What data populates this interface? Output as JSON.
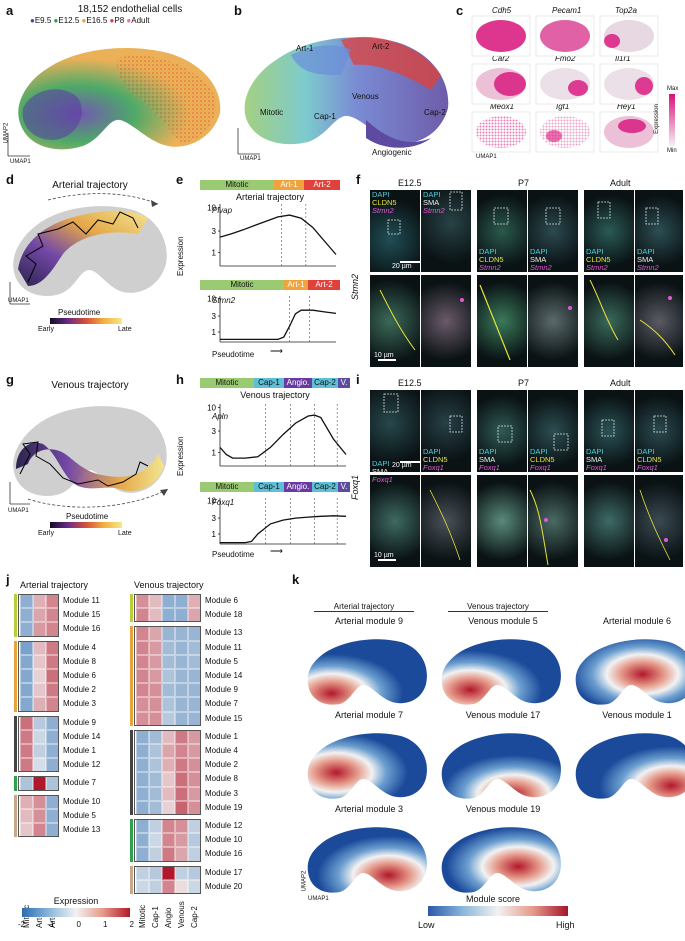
{
  "panels": {
    "a": "a",
    "b": "b",
    "c": "c",
    "d": "d",
    "e": "e",
    "f": "f",
    "g": "g",
    "h": "h",
    "i": "i",
    "j": "j",
    "k": "k"
  },
  "a": {
    "title": "18,152 endothelial cells",
    "legend": [
      {
        "label": "E9.5",
        "color": "#5a3aa3"
      },
      {
        "label": "E12.5",
        "color": "#2e9a4e"
      },
      {
        "label": "E16.5",
        "color": "#e8a33a"
      },
      {
        "label": "P8",
        "color": "#e0413a"
      },
      {
        "label": "Adult",
        "color": "#e56fb3"
      }
    ],
    "xaxis": "UMAP1",
    "yaxis": "UMAP2"
  },
  "b": {
    "clusters": [
      "Art-1",
      "Art-2",
      "Mitotic",
      "Cap-1",
      "Venous",
      "Cap-2",
      "Angiogenic"
    ],
    "cluster_colors": [
      "#6b7ecf",
      "#e0413a",
      "#9acb73",
      "#5ebfd6",
      "#7c5cb5",
      "#7d65b8",
      "#5e4aa0"
    ],
    "xaxis": "UMAP1",
    "yaxis": "UMAP2"
  },
  "c": {
    "genes": [
      "Cdh5",
      "Pecam1",
      "Top2a",
      "Car2",
      "Fmo2",
      "Il1r1",
      "Meox1",
      "Igf1",
      "Hey1"
    ],
    "scale_max": "Max",
    "scale_min": "Min",
    "scale_label": "Expression",
    "xaxis": "UMAP1",
    "yaxis": "UMAP2"
  },
  "d": {
    "title": "Arterial trajectory",
    "scale_label": "Pseudotime",
    "early": "Early",
    "late": "Late",
    "xaxis": "UMAP1",
    "yaxis": "UMAP2"
  },
  "e": {
    "stages": [
      "Mitotic",
      "Art-1",
      "Art-2"
    ],
    "title": "Arterial trajectory",
    "genes": [
      "Plvap",
      "Stmn2"
    ],
    "yticks": [
      "10",
      "3",
      "1"
    ],
    "ylabel": "Expression",
    "xlabel": "Pseudotime"
  },
  "f": {
    "timepoints": [
      "E12.5",
      "P7",
      "Adult"
    ],
    "gene": "Stmn2",
    "stain_a": [
      "DAPI",
      "CLDN5",
      "Stmn2"
    ],
    "stain_b": [
      "DAPI",
      "SMA",
      "Stmn2"
    ],
    "scale_top": "20 µm",
    "scale_bottom": "10 µm"
  },
  "g": {
    "title": "Venous trajectory",
    "scale_label": "Pseudotime",
    "early": "Early",
    "late": "Late",
    "xaxis": "UMAP1",
    "yaxis": "UMAP2"
  },
  "h": {
    "stages": [
      "Mitotic",
      "Cap-1",
      "Angio.",
      "Cap-2",
      "V."
    ],
    "title": "Venous trajectory",
    "genes": [
      "Apln",
      "Foxq1"
    ],
    "yticks": [
      "10",
      "3",
      "1"
    ],
    "ylabel": "Expression",
    "xlabel": "Pseudotime"
  },
  "i": {
    "timepoints": [
      "E12.5",
      "P7",
      "Adult"
    ],
    "gene": "Foxq1",
    "stain_a": [
      "DAPI",
      "SMA",
      "Foxq1"
    ],
    "stain_b": [
      "DAPI",
      "CLDN5",
      "Foxq1"
    ],
    "scale_top": "20 µm",
    "scale_bottom": "10 µm"
  },
  "j": {
    "arterial_title": "Arterial trajectory",
    "venous_title": "Venous trajectory",
    "arterial_cols": [
      "Mitotic",
      "Art-1",
      "Art-2"
    ],
    "venous_cols": [
      "Mitotic",
      "Cap-1",
      "Angio",
      "Venous",
      "Cap-2"
    ],
    "arterial_modules": [
      {
        "name": "Module 11",
        "vals": [
          -1.0,
          0.6,
          1.0
        ]
      },
      {
        "name": "Module 15",
        "vals": [
          -1.0,
          0.7,
          1.0
        ]
      },
      {
        "name": "Module 16",
        "vals": [
          -1.0,
          0.8,
          1.0
        ]
      },
      {
        "name": "Module 4",
        "vals": [
          -1.2,
          0.5,
          1.1
        ]
      },
      {
        "name": "Module 8",
        "vals": [
          -1.1,
          0.4,
          1.1
        ]
      },
      {
        "name": "Module 6",
        "vals": [
          -1.1,
          0.3,
          1.2
        ]
      },
      {
        "name": "Module 2",
        "vals": [
          -1.1,
          0.4,
          1.1
        ]
      },
      {
        "name": "Module 3",
        "vals": [
          -1.1,
          0.6,
          1.0
        ]
      },
      {
        "name": "Module 9",
        "vals": [
          1.2,
          -0.6,
          -1.0
        ]
      },
      {
        "name": "Module 14",
        "vals": [
          1.1,
          -0.4,
          -1.0
        ]
      },
      {
        "name": "Module 1",
        "vals": [
          1.1,
          -0.5,
          -1.0
        ]
      },
      {
        "name": "Module 12",
        "vals": [
          1.1,
          -0.3,
          -1.0
        ]
      },
      {
        "name": "Module 7",
        "vals": [
          -0.7,
          2.0,
          -0.7
        ]
      },
      {
        "name": "Module 10",
        "vals": [
          0.6,
          0.9,
          -1.0
        ]
      },
      {
        "name": "Module 5",
        "vals": [
          0.5,
          0.9,
          -1.0
        ]
      },
      {
        "name": "Module 13",
        "vals": [
          0.4,
          1.0,
          -1.0
        ]
      }
    ],
    "arterial_groups": [
      {
        "size": 3,
        "color": "#b9cc3a"
      },
      {
        "size": 5,
        "color": "#e8a33a"
      },
      {
        "size": 4,
        "color": "#444444"
      },
      {
        "size": 1,
        "color": "#2ea24a"
      },
      {
        "size": 3,
        "color": "#c8a888"
      }
    ],
    "venous_modules": [
      {
        "name": "Module 6",
        "vals": [
          0.9,
          0.5,
          -1.0,
          -1.0,
          0.6
        ]
      },
      {
        "name": "Module 18",
        "vals": [
          1.0,
          0.5,
          -1.0,
          -1.0,
          0.7
        ]
      },
      {
        "name": "Module 13",
        "vals": [
          1.0,
          0.7,
          -0.9,
          -0.9,
          -0.9
        ]
      },
      {
        "name": "Module 11",
        "vals": [
          1.0,
          0.8,
          -0.8,
          -0.9,
          -0.8
        ]
      },
      {
        "name": "Module 5",
        "vals": [
          1.0,
          0.8,
          -0.8,
          -0.9,
          -0.8
        ]
      },
      {
        "name": "Module 14",
        "vals": [
          1.0,
          0.8,
          -0.7,
          -0.9,
          -0.9
        ]
      },
      {
        "name": "Module 9",
        "vals": [
          1.0,
          0.9,
          -0.8,
          -0.9,
          -0.9
        ]
      },
      {
        "name": "Module 7",
        "vals": [
          0.9,
          0.9,
          -0.7,
          -0.9,
          -0.9
        ]
      },
      {
        "name": "Module 15",
        "vals": [
          0.9,
          0.9,
          -0.6,
          -0.9,
          -0.9
        ]
      },
      {
        "name": "Module 1",
        "vals": [
          -1.0,
          -0.8,
          0.5,
          1.1,
          0.8
        ]
      },
      {
        "name": "Module 4",
        "vals": [
          -1.0,
          -0.7,
          0.7,
          1.0,
          0.8
        ]
      },
      {
        "name": "Module 2",
        "vals": [
          -1.0,
          -0.7,
          0.6,
          1.1,
          0.9
        ]
      },
      {
        "name": "Module 8",
        "vals": [
          -1.0,
          -0.8,
          0.4,
          1.2,
          0.9
        ]
      },
      {
        "name": "Module 3",
        "vals": [
          -1.0,
          -0.8,
          0.5,
          1.2,
          0.8
        ]
      },
      {
        "name": "Module 19",
        "vals": [
          -1.0,
          -0.8,
          0.3,
          1.3,
          0.9
        ]
      },
      {
        "name": "Module 12",
        "vals": [
          -1.0,
          -0.5,
          1.0,
          0.9,
          -0.5
        ]
      },
      {
        "name": "Module 10",
        "vals": [
          -1.0,
          -0.4,
          1.0,
          0.8,
          -0.6
        ]
      },
      {
        "name": "Module 16",
        "vals": [
          -1.0,
          -0.5,
          1.1,
          0.7,
          -0.5
        ]
      },
      {
        "name": "Module 17",
        "vals": [
          -0.5,
          -0.6,
          2.0,
          -0.5,
          -0.6
        ]
      },
      {
        "name": "Module 20",
        "vals": [
          -0.4,
          -0.5,
          1.0,
          0.2,
          -0.4
        ]
      }
    ],
    "venous_groups": [
      {
        "size": 2,
        "color": "#b9cc3a"
      },
      {
        "size": 7,
        "color": "#e8a33a"
      },
      {
        "size": 6,
        "color": "#444444"
      },
      {
        "size": 3,
        "color": "#2ea24a"
      },
      {
        "size": 2,
        "color": "#c8a888"
      }
    ],
    "colorbar_label": "Expression",
    "colorbar_ticks": [
      "-2",
      "-1",
      "0",
      "1",
      "2"
    ]
  },
  "k": {
    "group_arterial": "Arterial trajectory",
    "group_venous": "Venous trajectory",
    "maps": [
      "Arterial module 9",
      "Venous module 5",
      "Arterial module 6",
      "Arterial module 7",
      "Venous module 17",
      "Venous module 1",
      "Arterial module 3",
      "Venous module 19"
    ],
    "colorbar_label": "Module score",
    "low": "Low",
    "high": "High",
    "xaxis": "UMAP1",
    "yaxis": "UMAP2"
  },
  "chart_data": [
    {
      "type": "line",
      "title": "Arterial trajectory",
      "gene": "Plvap",
      "xlabel": "Pseudotime",
      "ylabel": "Expression",
      "yscale": "log",
      "yticks": [
        1,
        3,
        10
      ],
      "x": [
        0,
        0.1,
        0.2,
        0.3,
        0.4,
        0.5,
        0.6,
        0.7,
        0.8,
        0.9,
        1.0
      ],
      "y": [
        2.2,
        2.6,
        3.2,
        4.0,
        5.0,
        6.2,
        6.8,
        5.8,
        3.6,
        1.8,
        0.9
      ]
    },
    {
      "type": "line",
      "title": "Arterial trajectory",
      "gene": "Stmn2",
      "xlabel": "Pseudotime",
      "ylabel": "Expression",
      "yscale": "log",
      "yticks": [
        1,
        3,
        10
      ],
      "x": [
        0,
        0.1,
        0.2,
        0.3,
        0.4,
        0.5,
        0.55,
        0.6,
        0.65,
        0.7,
        0.8,
        0.9,
        1.0
      ],
      "y": [
        0.6,
        0.6,
        0.6,
        0.6,
        0.6,
        0.6,
        0.7,
        1.5,
        3.5,
        4.5,
        4.5,
        4.0,
        3.6
      ]
    },
    {
      "type": "line",
      "title": "Venous trajectory",
      "gene": "Apln",
      "xlabel": "Pseudotime",
      "ylabel": "Expression",
      "yscale": "log",
      "yticks": [
        1,
        3,
        10
      ],
      "x": [
        0,
        0.05,
        0.1,
        0.2,
        0.3,
        0.4,
        0.5,
        0.6,
        0.7,
        0.75,
        0.8,
        0.9,
        1.0
      ],
      "y": [
        1.3,
        0.9,
        0.75,
        0.75,
        0.8,
        1.3,
        2.5,
        4.5,
        6.5,
        6.8,
        6.0,
        2.0,
        0.9
      ]
    },
    {
      "type": "line",
      "title": "Venous trajectory",
      "gene": "Foxq1",
      "xlabel": "Pseudotime",
      "ylabel": "Expression",
      "yscale": "log",
      "yticks": [
        1,
        3,
        10
      ],
      "x": [
        0,
        0.1,
        0.2,
        0.25,
        0.3,
        0.4,
        0.5,
        0.6,
        0.7,
        0.8,
        0.9,
        1.0
      ],
      "y": [
        0.55,
        0.55,
        0.55,
        0.6,
        1.0,
        2.0,
        2.6,
        3.0,
        3.2,
        3.4,
        3.5,
        3.4
      ]
    }
  ]
}
